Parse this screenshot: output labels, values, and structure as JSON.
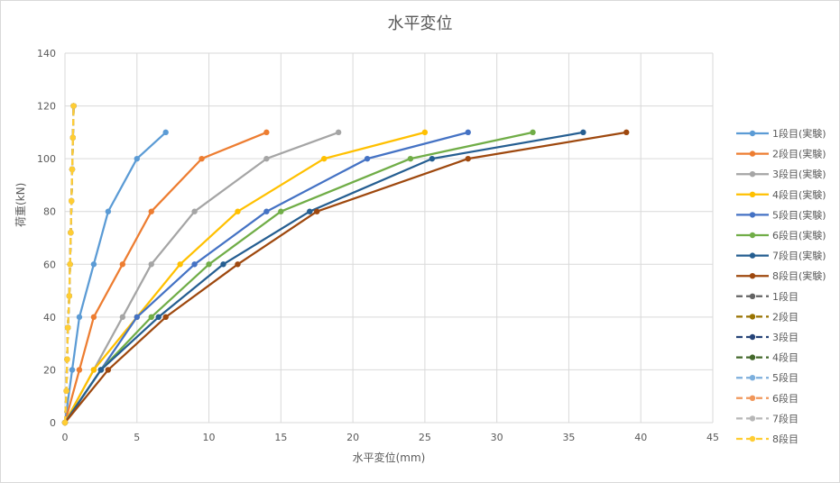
{
  "chart_data": {
    "type": "line",
    "title": "水平変位",
    "xlabel": "水平変位(mm)",
    "ylabel": "荷重(kN)",
    "xlim": [
      0,
      45
    ],
    "ylim": [
      0,
      140
    ],
    "xticks": [
      0,
      5,
      10,
      15,
      20,
      25,
      30,
      35,
      40,
      45
    ],
    "yticks": [
      0,
      20,
      40,
      60,
      80,
      100,
      120,
      140
    ],
    "grid": true,
    "legend_position": "right",
    "series": [
      {
        "name": "1段目(実験)",
        "color": "#5b9bd5",
        "dashed": false,
        "points": [
          [
            0,
            0
          ],
          [
            0.5,
            20
          ],
          [
            1,
            40
          ],
          [
            2,
            60
          ],
          [
            3,
            80
          ],
          [
            5,
            100
          ],
          [
            7,
            110
          ]
        ]
      },
      {
        "name": "2段目(実験)",
        "color": "#ed7d31",
        "dashed": false,
        "points": [
          [
            0,
            0
          ],
          [
            1,
            20
          ],
          [
            2,
            40
          ],
          [
            4,
            60
          ],
          [
            6,
            80
          ],
          [
            9.5,
            100
          ],
          [
            14,
            110
          ]
        ]
      },
      {
        "name": "3段目(実験)",
        "color": "#a5a5a5",
        "dashed": false,
        "points": [
          [
            0,
            0
          ],
          [
            2,
            20
          ],
          [
            4,
            40
          ],
          [
            6,
            60
          ],
          [
            9,
            80
          ],
          [
            14,
            100
          ],
          [
            19,
            110
          ]
        ]
      },
      {
        "name": "4段目(実験)",
        "color": "#ffc000",
        "dashed": false,
        "points": [
          [
            0,
            0
          ],
          [
            2,
            20
          ],
          [
            5,
            40
          ],
          [
            8,
            60
          ],
          [
            12,
            80
          ],
          [
            18,
            100
          ],
          [
            25,
            110
          ]
        ]
      },
      {
        "name": "5段目(実験)",
        "color": "#4472c4",
        "dashed": false,
        "points": [
          [
            0,
            0
          ],
          [
            2.5,
            20
          ],
          [
            5,
            40
          ],
          [
            9,
            60
          ],
          [
            14,
            80
          ],
          [
            21,
            100
          ],
          [
            28,
            110
          ]
        ]
      },
      {
        "name": "6段目(実験)",
        "color": "#70ad47",
        "dashed": false,
        "points": [
          [
            0,
            0
          ],
          [
            2.5,
            20
          ],
          [
            6,
            40
          ],
          [
            10,
            60
          ],
          [
            15,
            80
          ],
          [
            24,
            100
          ],
          [
            32.5,
            110
          ]
        ]
      },
      {
        "name": "7段目(実験)",
        "color": "#255e91",
        "dashed": false,
        "points": [
          [
            0,
            0
          ],
          [
            2.5,
            20
          ],
          [
            6.5,
            40
          ],
          [
            11,
            60
          ],
          [
            17,
            80
          ],
          [
            25.5,
            100
          ],
          [
            36,
            110
          ]
        ]
      },
      {
        "name": "8段目(実験)",
        "color": "#9e480e",
        "dashed": false,
        "points": [
          [
            0,
            0
          ],
          [
            3,
            20
          ],
          [
            7,
            40
          ],
          [
            12,
            60
          ],
          [
            17.5,
            80
          ],
          [
            28,
            100
          ],
          [
            39,
            110
          ]
        ]
      },
      {
        "name": "1段目",
        "color": "#636363",
        "dashed": true,
        "points": [
          [
            0,
            0
          ],
          [
            0.1,
            12
          ],
          [
            0.15,
            24
          ],
          [
            0.2,
            36
          ],
          [
            0.3,
            48
          ],
          [
            0.35,
            60
          ],
          [
            0.4,
            72
          ],
          [
            0.45,
            84
          ],
          [
            0.5,
            96
          ],
          [
            0.55,
            108
          ],
          [
            0.6,
            120
          ]
        ]
      },
      {
        "name": "2段目",
        "color": "#997300",
        "dashed": true,
        "points": [
          [
            0,
            0
          ],
          [
            0.1,
            12
          ],
          [
            0.15,
            24
          ],
          [
            0.2,
            36
          ],
          [
            0.3,
            48
          ],
          [
            0.35,
            60
          ],
          [
            0.4,
            72
          ],
          [
            0.45,
            84
          ],
          [
            0.5,
            96
          ],
          [
            0.55,
            108
          ],
          [
            0.6,
            120
          ]
        ]
      },
      {
        "name": "3段目",
        "color": "#264478",
        "dashed": true,
        "points": [
          [
            0,
            0
          ],
          [
            0.1,
            12
          ],
          [
            0.15,
            24
          ],
          [
            0.2,
            36
          ],
          [
            0.3,
            48
          ],
          [
            0.35,
            60
          ],
          [
            0.4,
            72
          ],
          [
            0.45,
            84
          ],
          [
            0.5,
            96
          ],
          [
            0.55,
            108
          ],
          [
            0.6,
            120
          ]
        ]
      },
      {
        "name": "4段目",
        "color": "#43682b",
        "dashed": true,
        "points": [
          [
            0,
            0
          ],
          [
            0.1,
            12
          ],
          [
            0.15,
            24
          ],
          [
            0.2,
            36
          ],
          [
            0.3,
            48
          ],
          [
            0.35,
            60
          ],
          [
            0.4,
            72
          ],
          [
            0.45,
            84
          ],
          [
            0.5,
            96
          ],
          [
            0.55,
            108
          ],
          [
            0.6,
            120
          ]
        ]
      },
      {
        "name": "5段目",
        "color": "#7cafdd",
        "dashed": true,
        "points": [
          [
            0,
            0
          ],
          [
            0.1,
            12
          ],
          [
            0.15,
            24
          ],
          [
            0.2,
            36
          ],
          [
            0.3,
            48
          ],
          [
            0.35,
            60
          ],
          [
            0.4,
            72
          ],
          [
            0.45,
            84
          ],
          [
            0.5,
            96
          ],
          [
            0.55,
            108
          ],
          [
            0.6,
            120
          ]
        ]
      },
      {
        "name": "6段目",
        "color": "#f1975a",
        "dashed": true,
        "points": [
          [
            0,
            0
          ],
          [
            0.1,
            12
          ],
          [
            0.15,
            24
          ],
          [
            0.2,
            36
          ],
          [
            0.3,
            48
          ],
          [
            0.35,
            60
          ],
          [
            0.4,
            72
          ],
          [
            0.45,
            84
          ],
          [
            0.5,
            96
          ],
          [
            0.55,
            108
          ],
          [
            0.6,
            120
          ]
        ]
      },
      {
        "name": "7段目",
        "color": "#b7b7b7",
        "dashed": true,
        "points": [
          [
            0,
            0
          ],
          [
            0.1,
            12
          ],
          [
            0.15,
            24
          ],
          [
            0.2,
            36
          ],
          [
            0.3,
            48
          ],
          [
            0.35,
            60
          ],
          [
            0.4,
            72
          ],
          [
            0.45,
            84
          ],
          [
            0.5,
            96
          ],
          [
            0.55,
            108
          ],
          [
            0.6,
            120
          ]
        ]
      },
      {
        "name": "8段目",
        "color": "#ffcd33",
        "dashed": true,
        "points": [
          [
            0,
            0
          ],
          [
            0.1,
            12
          ],
          [
            0.15,
            24
          ],
          [
            0.2,
            36
          ],
          [
            0.3,
            48
          ],
          [
            0.35,
            60
          ],
          [
            0.4,
            72
          ],
          [
            0.45,
            84
          ],
          [
            0.5,
            96
          ],
          [
            0.55,
            108
          ],
          [
            0.6,
            120
          ]
        ]
      }
    ]
  }
}
